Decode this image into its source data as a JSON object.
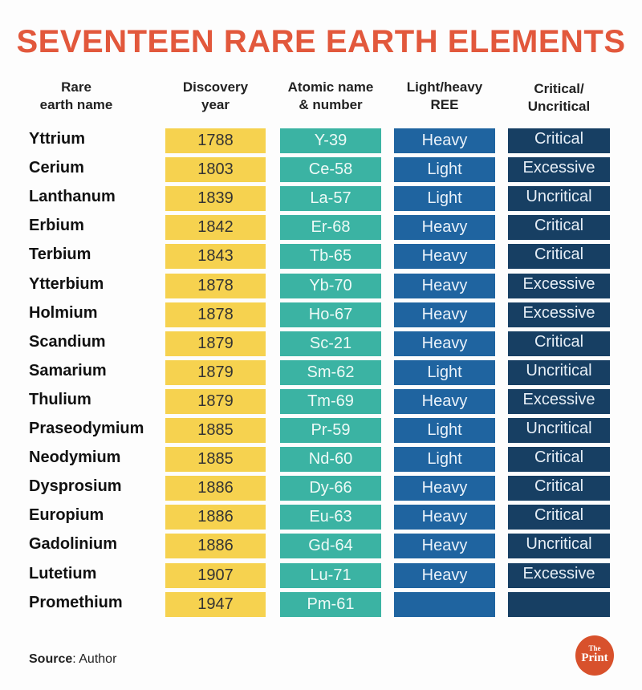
{
  "title": "SEVENTEEN RARE EARTH ELEMENTS",
  "headers": [
    "Rare\nearth name",
    "Discovery\nyear",
    "Atomic name\n& number",
    "Light/heavy\nREE",
    "Critical/\nUncritical"
  ],
  "colors": {
    "title": "#e2583c",
    "year": "#f6d24f",
    "atomic": "#3bb3a3",
    "ree": "#1f64a0",
    "critical": "#173f63"
  },
  "rows": [
    {
      "name": "Yttrium",
      "year": "1788",
      "atomic": "Y-39",
      "ree": "Heavy",
      "critical": "Critical"
    },
    {
      "name": "Cerium",
      "year": "1803",
      "atomic": "Ce-58",
      "ree": "Light",
      "critical": "Excessive"
    },
    {
      "name": "Lanthanum",
      "year": "1839",
      "atomic": "La-57",
      "ree": "Light",
      "critical": "Uncritical"
    },
    {
      "name": "Erbium",
      "year": "1842",
      "atomic": "Er-68",
      "ree": "Heavy",
      "critical": "Critical"
    },
    {
      "name": "Terbium",
      "year": "1843",
      "atomic": "Tb-65",
      "ree": "Heavy",
      "critical": "Critical"
    },
    {
      "name": "Ytterbium",
      "year": "1878",
      "atomic": "Yb-70",
      "ree": "Heavy",
      "critical": "Excessive"
    },
    {
      "name": "Holmium",
      "year": "1878",
      "atomic": "Ho-67",
      "ree": "Heavy",
      "critical": "Excessive"
    },
    {
      "name": "Scandium",
      "year": "1879",
      "atomic": "Sc-21",
      "ree": "Heavy",
      "critical": "Critical"
    },
    {
      "name": "Samarium",
      "year": "1879",
      "atomic": "Sm-62",
      "ree": "Light",
      "critical": "Uncritical"
    },
    {
      "name": "Thulium",
      "year": "1879",
      "atomic": "Tm-69",
      "ree": "Heavy",
      "critical": "Excessive"
    },
    {
      "name": "Praseodymium",
      "year": "1885",
      "atomic": "Pr-59",
      "ree": "Light",
      "critical": "Uncritical"
    },
    {
      "name": "Neodymium",
      "year": "1885",
      "atomic": "Nd-60",
      "ree": "Light",
      "critical": "Critical"
    },
    {
      "name": "Dysprosium",
      "year": "1886",
      "atomic": "Dy-66",
      "ree": "Heavy",
      "critical": "Critical"
    },
    {
      "name": "Europium",
      "year": "1886",
      "atomic": "Eu-63",
      "ree": "Heavy",
      "critical": "Critical"
    },
    {
      "name": "Gadolinium",
      "year": "1886",
      "atomic": "Gd-64",
      "ree": "Heavy",
      "critical": "Uncritical"
    },
    {
      "name": "Lutetium",
      "year": "1907",
      "atomic": "Lu-71",
      "ree": "Heavy",
      "critical": "Excessive"
    },
    {
      "name": "Promethium",
      "year": "1947",
      "atomic": "Pm-61",
      "ree": "",
      "critical": ""
    }
  ],
  "source": {
    "label": "Source",
    "text": ": Author"
  },
  "logo": {
    "line1": "The",
    "line2": "Print"
  }
}
